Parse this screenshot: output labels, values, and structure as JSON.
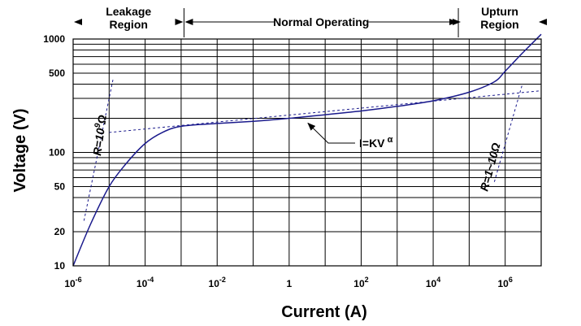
{
  "chart_data": {
    "type": "line",
    "title": "",
    "xlabel": "Current (A)",
    "ylabel": "Voltage (V)",
    "x_scale": "log",
    "y_scale": "log",
    "xlim": [
      1e-06,
      10000000.0
    ],
    "ylim": [
      10,
      1000
    ],
    "grid": true,
    "legend": "none",
    "x_ticks": [
      {
        "value": 1e-06,
        "base": "10",
        "exp": "-6"
      },
      {
        "value": 0.0001,
        "base": "10",
        "exp": "-4"
      },
      {
        "value": 0.01,
        "base": "10",
        "exp": "-2"
      },
      {
        "value": 1,
        "base": "1",
        "exp": ""
      },
      {
        "value": 100.0,
        "base": "10",
        "exp": "2"
      },
      {
        "value": 10000.0,
        "base": "10",
        "exp": "4"
      },
      {
        "value": 1000000.0,
        "base": "10",
        "exp": "6"
      }
    ],
    "y_ticks": [
      {
        "value": 10,
        "label": "10"
      },
      {
        "value": 20,
        "label": "20"
      },
      {
        "value": 50,
        "label": "50"
      },
      {
        "value": 100,
        "label": "100"
      },
      {
        "value": 500,
        "label": "500"
      },
      {
        "value": 1000,
        "label": "1000"
      }
    ],
    "series": [
      {
        "color": "#1a1a8c",
        "points": [
          [
            1e-06,
            10
          ],
          [
            3e-06,
            23
          ],
          [
            1e-05,
            50
          ],
          [
            3e-05,
            80
          ],
          [
            0.0001,
            120
          ],
          [
            0.0003,
            150
          ],
          [
            0.001,
            170
          ],
          [
            0.01,
            180
          ],
          [
            0.1,
            188
          ],
          [
            1,
            200
          ],
          [
            10,
            215
          ],
          [
            100,
            232
          ],
          [
            1000.0,
            255
          ],
          [
            10000.0,
            285
          ],
          [
            100000.0,
            340
          ],
          [
            500000.0,
            420
          ],
          [
            1000000.0,
            520
          ],
          [
            3000000.0,
            750
          ],
          [
            10000000.0,
            1100
          ]
        ]
      }
    ],
    "fit_lines": [
      {
        "name": "leakage-fit",
        "points": [
          [
            2e-06,
            25
          ],
          [
            1.3e-05,
            450
          ]
        ]
      },
      {
        "name": "normal-fit",
        "points": [
          [
            1e-05,
            150
          ],
          [
            10000000.0,
            350
          ]
        ]
      },
      {
        "name": "upturn-fit",
        "points": [
          [
            500000.0,
            55
          ],
          [
            3000000.0,
            400
          ]
        ]
      }
    ],
    "regions": [
      {
        "name": "leakage-region",
        "label_lines": [
          "Leakage",
          "Region"
        ],
        "x_from": 1e-06,
        "x_to": 0.0012
      },
      {
        "name": "normal-region",
        "label_lines": [
          "Normal Operating"
        ],
        "x_from": 0.0012,
        "x_to": 50000.0
      },
      {
        "name": "upturn-region",
        "label_lines": [
          "Upturn",
          "Region"
        ],
        "x_from": 50000.0,
        "x_to": 10000000.0
      }
    ],
    "annotations": {
      "leakage_r": {
        "base": "R=10",
        "sup": "9",
        "unit": "Ω"
      },
      "upturn_r": {
        "text": "R=1~10",
        "unit": "Ω"
      },
      "formula": {
        "base": "I=KV",
        "sup": "α",
        "pointer_value": [
          3,
          200
        ]
      }
    }
  }
}
